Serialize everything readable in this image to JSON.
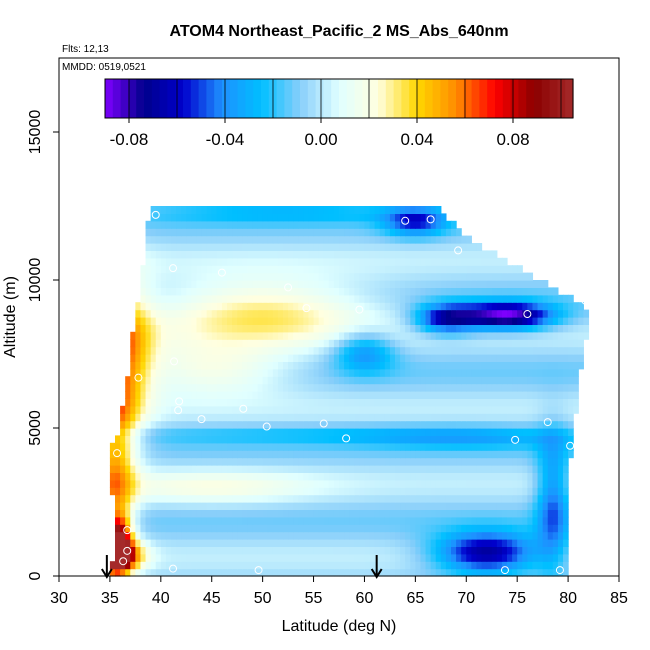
{
  "chart_data": {
    "type": "heatmap",
    "title": "ATOM4 Northeast_Pacific_2 MS_Abs_640nm",
    "annotations": [
      "Flts: 12,13",
      "MMDD: 0519,0521"
    ],
    "xlabel": "Latitude (deg N)",
    "ylabel": "Altitude (m)",
    "xlim": [
      30,
      85
    ],
    "ylim": [
      0,
      17500
    ],
    "x_ticks": [
      "30",
      "35",
      "40",
      "45",
      "50",
      "55",
      "60",
      "65",
      "70",
      "75",
      "80",
      "85"
    ],
    "y_ticks": [
      "0",
      "5000",
      "10000",
      "15000"
    ],
    "colorbar": {
      "range": [
        -0.09,
        0.105
      ],
      "tick_labels": [
        "-0.08",
        "-0.04",
        "0.00",
        "0.04",
        "0.08"
      ],
      "tick_values": [
        -0.08,
        -0.04,
        0.0,
        0.04,
        0.08
      ],
      "colors": [
        "#7f00ff",
        "#00008b",
        "#0000cd",
        "#1e90ff",
        "#00bfff",
        "#87cefa",
        "#e0ffff",
        "#ffffe0",
        "#ffd700",
        "#ff8c00",
        "#ff0000",
        "#8b0000",
        "#a52a2a"
      ]
    },
    "grid": false,
    "arrows_latitude": [
      34.7,
      61.2
    ],
    "sample_points": [
      {
        "lat": 39.5,
        "alt": 12200
      },
      {
        "lat": 64.0,
        "alt": 12000
      },
      {
        "lat": 66.5,
        "alt": 12050
      },
      {
        "lat": 69.2,
        "alt": 11000
      },
      {
        "lat": 41.2,
        "alt": 10400
      },
      {
        "lat": 46.0,
        "alt": 10250
      },
      {
        "lat": 52.5,
        "alt": 9750
      },
      {
        "lat": 54.3,
        "alt": 9050
      },
      {
        "lat": 59.5,
        "alt": 9000
      },
      {
        "lat": 76.0,
        "alt": 8850
      },
      {
        "lat": 81.7,
        "alt": 9300
      },
      {
        "lat": 41.3,
        "alt": 7250
      },
      {
        "lat": 37.8,
        "alt": 6700
      },
      {
        "lat": 41.8,
        "alt": 5900
      },
      {
        "lat": 41.7,
        "alt": 5600
      },
      {
        "lat": 48.1,
        "alt": 5650
      },
      {
        "lat": 44.0,
        "alt": 5300
      },
      {
        "lat": 50.4,
        "alt": 5050
      },
      {
        "lat": 56.0,
        "alt": 5150
      },
      {
        "lat": 58.2,
        "alt": 4650
      },
      {
        "lat": 74.8,
        "alt": 4600
      },
      {
        "lat": 78.0,
        "alt": 5200
      },
      {
        "lat": 80.2,
        "alt": 4400
      },
      {
        "lat": 35.7,
        "alt": 4150
      },
      {
        "lat": 36.7,
        "alt": 1550
      },
      {
        "lat": 36.7,
        "alt": 850
      },
      {
        "lat": 36.3,
        "alt": 500
      },
      {
        "lat": 41.2,
        "alt": 250
      },
      {
        "lat": 49.6,
        "alt": 200
      },
      {
        "lat": 73.8,
        "alt": 200
      },
      {
        "lat": 79.2,
        "alt": 200
      }
    ],
    "profile_shape": {
      "top_left_lat": 39.1,
      "top_alt": 12500,
      "right_edge": [
        {
          "alt": 12500,
          "lat": 67.0
        },
        {
          "alt": 11500,
          "lat": 69.5
        },
        {
          "alt": 11000,
          "lat": 72.0
        },
        {
          "alt": 10500,
          "lat": 74.5
        },
        {
          "alt": 10000,
          "lat": 77.0
        },
        {
          "alt": 9500,
          "lat": 79.5
        },
        {
          "alt": 9000,
          "lat": 82.0
        },
        {
          "alt": 7000,
          "lat": 81.0
        },
        {
          "alt": 4000,
          "lat": 80.0
        },
        {
          "alt": 2000,
          "lat": 80.0
        },
        {
          "alt": 0,
          "lat": 79.5
        }
      ],
      "left_edge": [
        {
          "alt": 12500,
          "lat": 39.1
        },
        {
          "alt": 11000,
          "lat": 38.7
        },
        {
          "alt": 9500,
          "lat": 38.1
        },
        {
          "alt": 8000,
          "lat": 37.4
        },
        {
          "alt": 6500,
          "lat": 36.9
        },
        {
          "alt": 5000,
          "lat": 36.2
        },
        {
          "alt": 4000,
          "lat": 35.0
        },
        {
          "alt": 2500,
          "lat": 35.6
        },
        {
          "alt": 1000,
          "lat": 35.9
        },
        {
          "alt": 0,
          "lat": 35.0
        }
      ]
    }
  }
}
